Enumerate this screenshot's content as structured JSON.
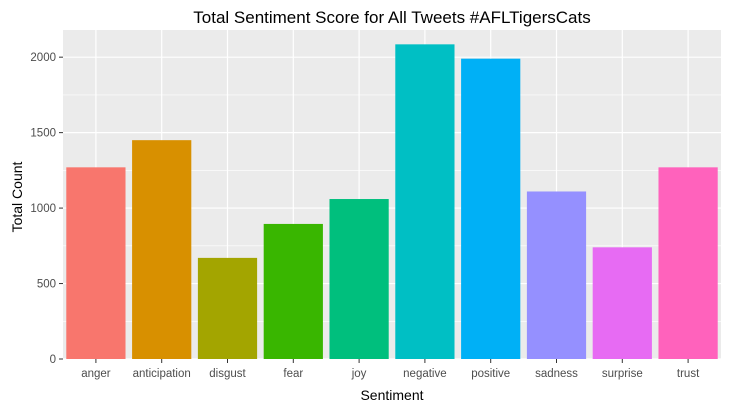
{
  "chart_data": {
    "type": "bar",
    "title": "Total Sentiment Score for All Tweets #AFLTigersCats",
    "xlabel": "Sentiment",
    "ylabel": "Total Count",
    "categories": [
      "anger",
      "anticipation",
      "disgust",
      "fear",
      "joy",
      "negative",
      "positive",
      "sadness",
      "surprise",
      "trust"
    ],
    "values": [
      1270,
      1450,
      670,
      895,
      1060,
      2085,
      1990,
      1110,
      740,
      1270
    ],
    "colors": [
      "#F8766D",
      "#D89000",
      "#A3A500",
      "#39B600",
      "#00BF7D",
      "#00BFC4",
      "#00B0F6",
      "#9590FF",
      "#E76BF3",
      "#FF62BC"
    ],
    "ylim": [
      0,
      2180
    ],
    "yticks": [
      0,
      500,
      1000,
      1500,
      2000
    ],
    "grid": true,
    "legend": "none",
    "panel_background": "#EBEBEB"
  }
}
